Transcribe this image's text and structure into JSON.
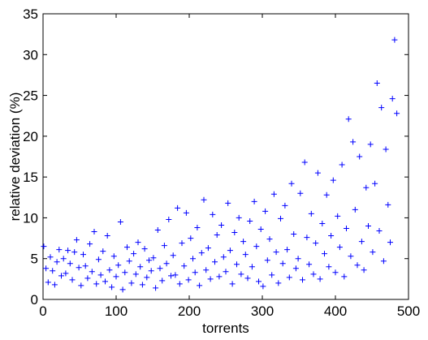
{
  "chart_data": {
    "type": "scatter",
    "xlabel": "torrents",
    "ylabel": "relative deviation (%)",
    "xlim": [
      0,
      500
    ],
    "ylim": [
      0,
      35
    ],
    "xticks": [
      0,
      100,
      200,
      300,
      400,
      500
    ],
    "yticks": [
      0,
      5,
      10,
      15,
      20,
      25,
      30,
      35
    ],
    "color": "#0000ff",
    "marker": "+",
    "x": [
      1,
      4,
      7,
      10,
      13,
      16,
      19,
      22,
      25,
      28,
      31,
      34,
      37,
      40,
      43,
      46,
      49,
      52,
      55,
      58,
      61,
      64,
      67,
      70,
      73,
      76,
      79,
      82,
      85,
      88,
      91,
      94,
      97,
      100,
      103,
      106,
      109,
      112,
      115,
      118,
      121,
      124,
      127,
      130,
      133,
      136,
      139,
      142,
      145,
      148,
      151,
      154,
      157,
      160,
      163,
      166,
      169,
      172,
      175,
      178,
      181,
      184,
      187,
      190,
      193,
      196,
      199,
      202,
      205,
      208,
      211,
      214,
      217,
      220,
      223,
      226,
      229,
      232,
      235,
      238,
      241,
      244,
      247,
      250,
      253,
      256,
      259,
      262,
      265,
      268,
      271,
      274,
      277,
      280,
      283,
      286,
      289,
      292,
      295,
      298,
      301,
      304,
      307,
      310,
      313,
      316,
      319,
      322,
      325,
      328,
      331,
      334,
      337,
      340,
      343,
      346,
      349,
      352,
      355,
      358,
      361,
      364,
      367,
      370,
      373,
      376,
      379,
      382,
      385,
      388,
      391,
      394,
      397,
      400,
      403,
      406,
      409,
      412,
      415,
      418,
      421,
      424,
      427,
      430,
      433,
      436,
      439,
      442,
      445,
      448,
      451,
      454,
      457,
      460,
      463,
      466,
      469,
      472,
      475,
      478,
      481,
      484
    ],
    "y": [
      6.5,
      3.8,
      2.1,
      5.2,
      3.5,
      1.8,
      4.6,
      6.1,
      2.9,
      5.0,
      3.2,
      6.0,
      4.4,
      2.4,
      5.8,
      7.3,
      3.9,
      1.7,
      5.5,
      4.1,
      2.6,
      6.8,
      3.4,
      8.3,
      1.9,
      4.9,
      3.0,
      5.9,
      2.2,
      7.8,
      3.6,
      1.5,
      5.3,
      2.8,
      4.2,
      9.5,
      1.2,
      3.3,
      6.4,
      4.7,
      2.0,
      5.6,
      3.1,
      7.0,
      4.0,
      1.8,
      6.2,
      2.7,
      4.8,
      3.5,
      5.1,
      1.4,
      8.5,
      3.8,
      2.3,
      6.6,
      4.4,
      9.8,
      2.9,
      5.4,
      3.0,
      11.2,
      1.9,
      6.9,
      4.1,
      10.6,
      2.4,
      7.5,
      5.0,
      3.3,
      8.8,
      1.7,
      5.7,
      12.2,
      3.6,
      6.3,
      2.5,
      10.4,
      4.6,
      7.9,
      2.8,
      9.1,
      5.2,
      3.4,
      11.8,
      6.0,
      1.9,
      8.2,
      4.3,
      10.0,
      3.1,
      7.1,
      5.5,
      2.6,
      9.6,
      4.0,
      12.0,
      6.5,
      2.2,
      8.6,
      1.6,
      10.8,
      4.8,
      7.4,
      3.0,
      12.9,
      5.8,
      2.0,
      9.9,
      4.4,
      11.5,
      6.1,
      2.7,
      14.2,
      8.0,
      3.8,
      5.0,
      13.0,
      2.4,
      16.8,
      7.6,
      4.3,
      10.5,
      3.1,
      6.9,
      15.5,
      2.5,
      9.3,
      5.6,
      12.8,
      4.0,
      7.8,
      14.6,
      3.3,
      10.2,
      6.4,
      16.5,
      2.8,
      8.7,
      22.1,
      5.3,
      19.3,
      11.0,
      4.2,
      17.5,
      7.1,
      3.6,
      13.7,
      9.0,
      19.0,
      5.8,
      14.2,
      26.5,
      8.4,
      23.5,
      4.7,
      18.4,
      11.6,
      7.0,
      24.6,
      31.8,
      22.8
    ]
  }
}
